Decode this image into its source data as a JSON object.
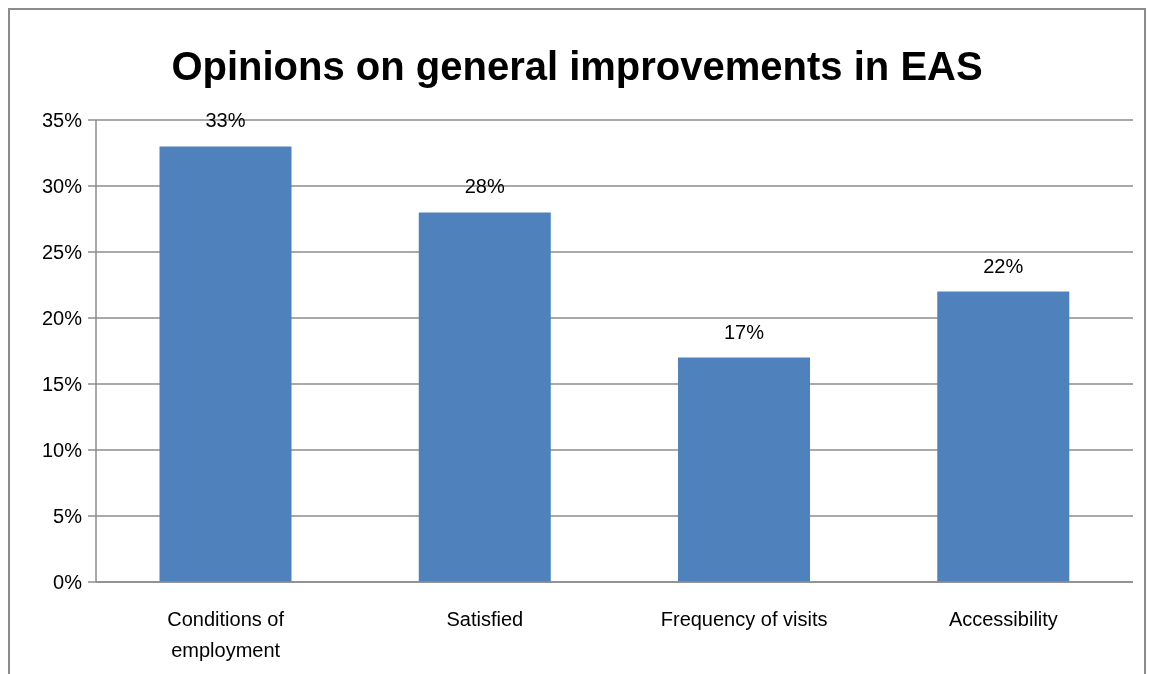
{
  "chart_data": {
    "type": "bar",
    "title": "Opinions on general improvements in EAS",
    "categories": [
      "Conditions of employment",
      "Satisfied",
      "Frequency of visits",
      "Accessibility"
    ],
    "values": [
      33,
      28,
      17,
      22
    ],
    "color": "#4f81bd",
    "value_labels": [
      "33%",
      "28%",
      "17%",
      "22%"
    ],
    "ylim": [
      0,
      35
    ],
    "yticks": [
      {
        "value": 0,
        "label": "0%"
      },
      {
        "value": 5,
        "label": "5%"
      },
      {
        "value": 10,
        "label": "10%"
      },
      {
        "value": 15,
        "label": "15%"
      },
      {
        "value": 20,
        "label": "20%"
      },
      {
        "value": 25,
        "label": "25%"
      },
      {
        "value": 30,
        "label": "30%"
      },
      {
        "value": 35,
        "label": "35%"
      }
    ],
    "grid": "y"
  }
}
